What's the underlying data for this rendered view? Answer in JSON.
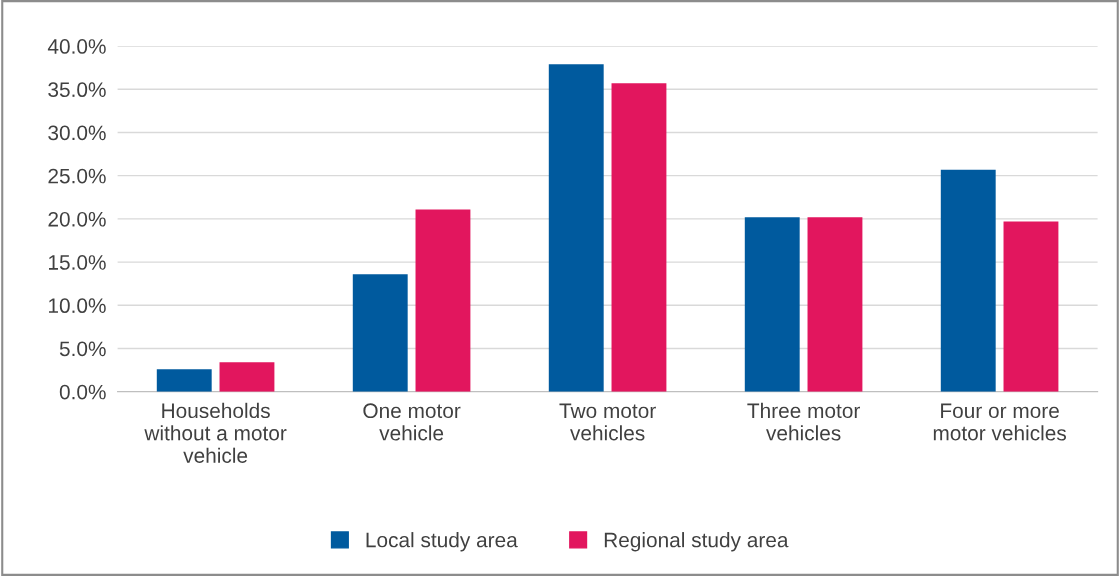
{
  "chart_data": {
    "type": "bar",
    "categories": [
      "Households\nwithout a motor\nvehicle",
      "One motor\nvehicle",
      "Two motor\nvehicles",
      "Three motor\nvehicles",
      "Four or more\nmotor vehicles"
    ],
    "series": [
      {
        "name": "Local study area",
        "color": "#005a9e",
        "values": [
          2.6,
          13.6,
          37.9,
          20.2,
          25.7
        ]
      },
      {
        "name": "Regional study area",
        "color": "#e2165e",
        "values": [
          3.4,
          21.1,
          35.7,
          20.2,
          19.7
        ]
      }
    ],
    "ylim": [
      0,
      40
    ],
    "yticks": [
      {
        "value": 0,
        "label": "0.0%"
      },
      {
        "value": 5,
        "label": "5.0%"
      },
      {
        "value": 10,
        "label": "10.0%"
      },
      {
        "value": 15,
        "label": "15.0%"
      },
      {
        "value": 20,
        "label": "20.0%"
      },
      {
        "value": 25,
        "label": "25.0%"
      },
      {
        "value": 30,
        "label": "30.0%"
      },
      {
        "value": 35,
        "label": "35.0%"
      },
      {
        "value": 40,
        "label": "40.0%"
      }
    ],
    "grid": "y",
    "legend": "bottom"
  }
}
